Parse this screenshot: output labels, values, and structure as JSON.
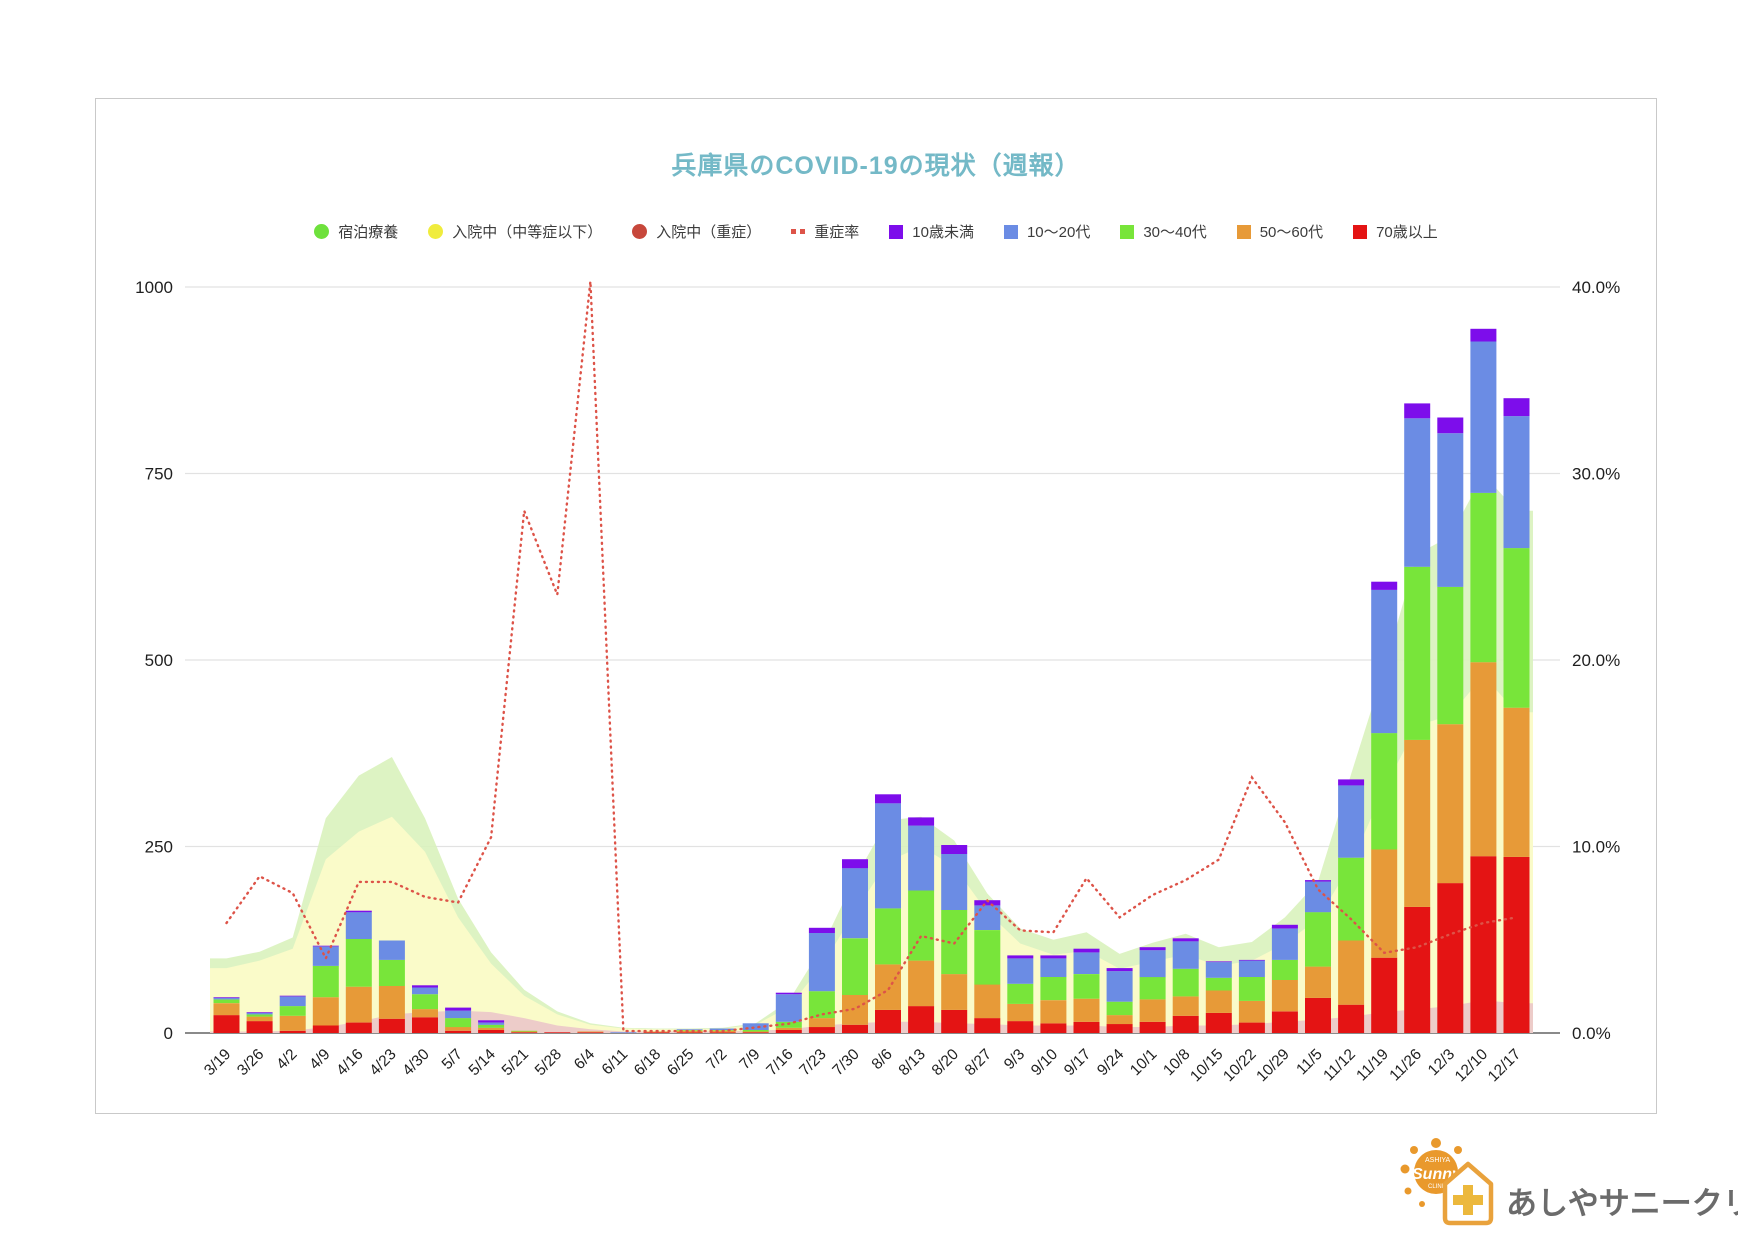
{
  "title": "兵庫県のCOVID-19の現状（週報）",
  "legend": {
    "items": [
      {
        "label": "宿泊療養",
        "marker": "circle",
        "color": "#6ee13c"
      },
      {
        "label": "入院中（中等症以下）",
        "marker": "circle",
        "color": "#f0ec3d"
      },
      {
        "label": "入院中（重症）",
        "marker": "circle",
        "color": "#c7473b"
      },
      {
        "label": "重症率",
        "marker": "dotted",
        "color": "#dd5348"
      },
      {
        "label": "10歳未満",
        "marker": "square",
        "color": "#7d0deb"
      },
      {
        "label": "10〜20代",
        "marker": "square",
        "color": "#6b8ce4"
      },
      {
        "label": "30〜40代",
        "marker": "square",
        "color": "#78e53a"
      },
      {
        "label": "50〜60代",
        "marker": "square",
        "color": "#e79a38"
      },
      {
        "label": "70歳以上",
        "marker": "square",
        "color": "#e41414"
      }
    ]
  },
  "axes": {
    "left_ticks": [
      "0",
      "250",
      "500",
      "750",
      "1000"
    ],
    "right_ticks": [
      "0.0%",
      "10.0%",
      "20.0%",
      "30.0%",
      "40.0%"
    ],
    "left_max": 1000,
    "right_max_pct": 40
  },
  "chart_data": {
    "type": "combo (stacked bars + stacked areas + dotted line)",
    "title": "兵庫県のCOVID-19の現状（週報）",
    "categories": [
      "3/19",
      "3/26",
      "4/2",
      "4/9",
      "4/16",
      "4/23",
      "4/30",
      "5/7",
      "5/14",
      "5/21",
      "5/28",
      "6/4",
      "6/11",
      "6/18",
      "6/25",
      "7/2",
      "7/9",
      "7/16",
      "7/23",
      "7/30",
      "8/6",
      "8/13",
      "8/20",
      "8/27",
      "9/3",
      "9/10",
      "9/17",
      "9/24",
      "10/1",
      "10/8",
      "10/15",
      "10/22",
      "10/29",
      "11/5",
      "11/12",
      "11/19",
      "11/26",
      "12/3",
      "12/10",
      "12/17"
    ],
    "area_series": [
      {
        "name": "入院中（重症）",
        "color": "#ecc9c9",
        "axis": "left",
        "values": [
          2,
          2,
          3,
          8,
          15,
          25,
          28,
          30,
          28,
          20,
          10,
          5,
          2,
          2,
          2,
          2,
          3,
          5,
          10,
          13,
          15,
          15,
          13,
          12,
          10,
          10,
          10,
          8,
          8,
          10,
          10,
          12,
          15,
          18,
          22,
          28,
          32,
          36,
          44,
          40
        ]
      },
      {
        "name": "入院中（中等症以下）",
        "color": "#fbfbc9",
        "axis": "left",
        "values": [
          85,
          95,
          110,
          225,
          255,
          265,
          215,
          125,
          65,
          30,
          15,
          6,
          4,
          3,
          3,
          4,
          8,
          30,
          80,
          150,
          215,
          235,
          210,
          150,
          110,
          95,
          100,
          78,
          88,
          95,
          80,
          85,
          105,
          135,
          205,
          300,
          380,
          390,
          435,
          390
        ]
      },
      {
        "name": "宿泊療養",
        "color": "#d9f2bd",
        "axis": "left",
        "values": [
          13,
          12,
          15,
          55,
          75,
          80,
          45,
          25,
          15,
          8,
          4,
          2,
          1,
          1,
          1,
          1,
          2,
          8,
          25,
          45,
          55,
          40,
          35,
          25,
          20,
          20,
          25,
          20,
          25,
          28,
          25,
          25,
          35,
          50,
          120,
          160,
          230,
          240,
          270,
          270
        ]
      }
    ],
    "bar_series": [
      {
        "name": "70歳以上",
        "color": "#e41414",
        "axis": "left",
        "values": [
          24,
          16,
          3,
          10,
          14,
          19,
          21,
          3,
          4,
          1,
          1,
          1,
          0,
          1,
          1,
          1,
          1,
          4,
          8,
          11,
          31,
          36,
          31,
          20,
          16,
          13,
          15,
          12,
          15,
          23,
          27,
          14,
          29,
          47,
          38,
          101,
          169,
          201,
          237,
          236
        ]
      },
      {
        "name": "50〜60代",
        "color": "#e79a38",
        "axis": "left",
        "values": [
          16,
          6,
          20,
          38,
          48,
          44,
          11,
          5,
          3,
          1,
          0,
          1,
          0,
          1,
          2,
          2,
          1,
          3,
          12,
          40,
          61,
          61,
          48,
          45,
          23,
          31,
          31,
          12,
          30,
          26,
          30,
          29,
          42,
          42,
          86,
          145,
          224,
          213,
          260,
          200
        ]
      },
      {
        "name": "30〜40代",
        "color": "#78e53a",
        "axis": "left",
        "values": [
          5,
          3,
          13,
          42,
          64,
          35,
          20,
          12,
          4,
          1,
          0,
          0,
          0,
          0,
          1,
          1,
          2,
          8,
          36,
          76,
          75,
          94,
          86,
          73,
          27,
          31,
          33,
          18,
          30,
          37,
          17,
          32,
          27,
          73,
          111,
          156,
          232,
          184,
          227,
          214
        ]
      },
      {
        "name": "10〜20代",
        "color": "#6b8ce4",
        "axis": "left",
        "values": [
          2,
          2,
          13,
          26,
          36,
          26,
          9,
          10,
          3,
          0,
          0,
          0,
          1,
          0,
          1,
          2,
          9,
          37,
          78,
          94,
          141,
          87,
          75,
          33,
          34,
          25,
          29,
          41,
          36,
          37,
          21,
          22,
          42,
          41,
          97,
          192,
          199,
          206,
          203,
          177
        ]
      },
      {
        "name": "10歳未満",
        "color": "#7d0deb",
        "axis": "left",
        "values": [
          1,
          1,
          1,
          1,
          2,
          0,
          3,
          4,
          3,
          0,
          0,
          0,
          0,
          0,
          0,
          0,
          0,
          2,
          7,
          12,
          12,
          11,
          12,
          7,
          4,
          4,
          5,
          4,
          4,
          4,
          1,
          1,
          5,
          2,
          8,
          11,
          20,
          21,
          17,
          24
        ]
      }
    ],
    "line_series": {
      "name": "重症率",
      "style": "dotted",
      "color": "#dd5348",
      "axis": "right",
      "values_pct": [
        5.9,
        8.4,
        7.5,
        4.0,
        8.1,
        8.1,
        7.3,
        7.0,
        10.5,
        28.0,
        23.5,
        40.3,
        0.1,
        0.1,
        0.1,
        0.1,
        0.3,
        0.5,
        1.0,
        1.3,
        2.3,
        5.2,
        4.8,
        7.1,
        5.5,
        5.4,
        8.3,
        6.2,
        7.4,
        8.2,
        9.3,
        13.7,
        11.3,
        7.7,
        6.1,
        4.3,
        4.6,
        5.3,
        5.9,
        6.2
      ]
    },
    "ylim_left": [
      0,
      1000
    ],
    "ylim_right_pct": [
      0,
      40
    ],
    "grid": "horizontal gridlines every 250 (left axis)",
    "legend_position": "top"
  },
  "logo": {
    "sun_word": "Sunny",
    "sun_top": "ASHIYA",
    "sun_bottom": "CLINIC",
    "clinic_name": "あしやサニークリニック",
    "accent_color": "#e9992c",
    "text_color": "#6b6b6b"
  }
}
